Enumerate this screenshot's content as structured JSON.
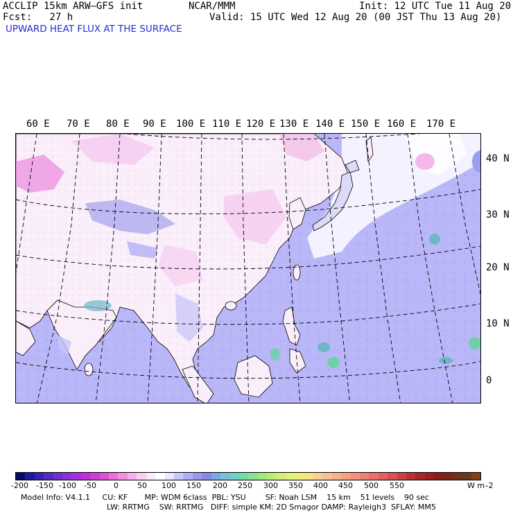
{
  "header": {
    "model": "ACCLIP 15km ARW–GFS init",
    "org": "NCAR/MMM",
    "init": "Init: 12 UTC Tue 11 Aug 20",
    "fcst": "Fcst:   27 h",
    "valid": "Valid: 15 UTC Wed 12 Aug 20 (00 JST Thu 13 Aug 20)",
    "field_title": "UPWARD HEAT FLUX AT THE SURFACE"
  },
  "map": {
    "lon_labels": [
      "60 E",
      "70 E",
      "80 E",
      "90 E",
      "100 E",
      "110 E",
      "120 E",
      "130 E",
      "140 E",
      "150 E",
      "160 E",
      "170 E"
    ],
    "lat_labels": [
      "40 N",
      "30 N",
      "20 N",
      "10 N",
      "0"
    ],
    "colors": {
      "land_neutral": "#fbeefb",
      "land_pink": "#f6cdef",
      "land_magenta": "#ec9ae2",
      "ocean_lavender": "#b9b7f8",
      "ocean_periwinkle": "#9c9df0",
      "near_zero_white": "#ffffff",
      "positive_green": "#70d0a8",
      "positive_teal": "#6fb6c9",
      "coastline": "#000000",
      "gridline": "#000000"
    }
  },
  "colorbar": {
    "ticks": [
      "-200",
      "-150",
      "-100",
      "-50",
      "0",
      "50",
      "100",
      "150",
      "200",
      "250",
      "300",
      "350",
      "400",
      "450",
      "500",
      "550"
    ],
    "unit": "W m–2",
    "colors": [
      "#0a0a60",
      "#1c1c9a",
      "#3a20b8",
      "#5528c8",
      "#7030d0",
      "#8c30d8",
      "#a830d8",
      "#c030d8",
      "#d040d0",
      "#e050d0",
      "#e870d8",
      "#f090e0",
      "#f4b0ea",
      "#f8d0f0",
      "#fbe8f8",
      "#ffffff",
      "#e8e8fe",
      "#c8c8fa",
      "#b0b0f6",
      "#9898f0",
      "#8888e8",
      "#7ca8e0",
      "#78c0d8",
      "#70d0c0",
      "#78d8a8",
      "#88e090",
      "#a0e880",
      "#b8ee78",
      "#d0f078",
      "#e4f078",
      "#f0ec80",
      "#f6e088",
      "#f8d090",
      "#f8c090",
      "#f8b088",
      "#f8a080",
      "#f49078",
      "#ee8070",
      "#e87068",
      "#e06060",
      "#d85050",
      "#c84040",
      "#b83030",
      "#a82828",
      "#982020",
      "#882018",
      "#782818",
      "#703018",
      "#683818",
      "#804018"
    ]
  },
  "model_info": {
    "line1": "Model Info: V4.1.1     CU: KF       MP: WDM 6class  PBL: YSU        SF: Noah LSM    15 km    51 levels    90 sec",
    "line2": "LW: RRTMG    SW: RRTMG   DIFF: simple KM: 2D Smagor DAMP: Rayleigh3  SFLAY: MM5"
  }
}
